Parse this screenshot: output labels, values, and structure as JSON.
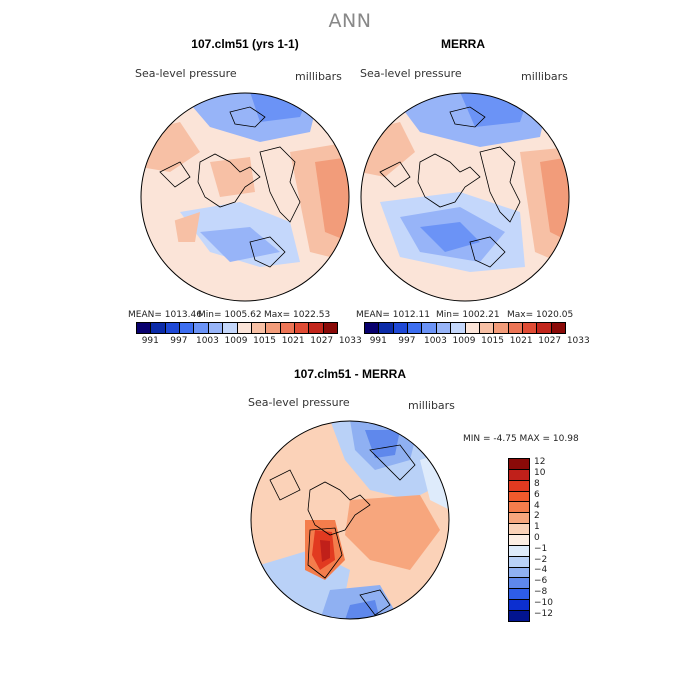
{
  "figure": {
    "title": "ANN"
  },
  "panels": [
    {
      "title": "107.clm51 (yrs 1-1)",
      "variable": "Sea-level pressure",
      "units": "millibars",
      "stats": {
        "mean_label": "MEAN= 1013.46",
        "min_label": "Min= 1005.62",
        "max_label": "Max= 1022.53"
      }
    },
    {
      "title": "MERRA",
      "variable": "Sea-level pressure",
      "units": "millibars",
      "stats": {
        "mean_label": "MEAN= 1012.11",
        "min_label": "Min= 1002.21",
        "max_label": "Max= 1020.05"
      }
    }
  ],
  "diff_panel": {
    "title": "107.clm51 - MERRA",
    "variable": "Sea-level pressure",
    "units": "millibars",
    "stats_label": "MIN =   -4.75 MAX =   10.98"
  },
  "colorbar_top": {
    "colors": [
      "#08006e",
      "#0b2ba8",
      "#1f49d6",
      "#3d6ef0",
      "#6b93f6",
      "#97b4f8",
      "#c4d7fb",
      "#fbe4d8",
      "#f7c0a5",
      "#f29c7a",
      "#ec7556",
      "#e04c35",
      "#c2261c",
      "#8a0a08"
    ],
    "ticks": [
      "991",
      "997",
      "1003",
      "1009",
      "1015",
      "1021",
      "1027",
      "1033"
    ]
  },
  "colorbar_diff": {
    "colors": [
      "#8a0a08",
      "#c0201a",
      "#e23a20",
      "#f05a2c",
      "#f47d4c",
      "#f7a67d",
      "#fbd2b8",
      "#fdeee4",
      "#deebfb",
      "#b9d1f7",
      "#8fb0f2",
      "#5f88ec",
      "#2e5de8",
      "#0c2fd0",
      "#02148f"
    ],
    "ticks": [
      "12",
      "10",
      "8",
      "6",
      "4",
      "2",
      "1",
      "0",
      "−1",
      "−2",
      "−4",
      "−6",
      "−8",
      "−10",
      "−12"
    ]
  },
  "chart_data": {
    "type": "heatmap",
    "title": "ANN",
    "projection": "north polar stereographic",
    "variable": "Sea-level pressure",
    "units": "millibars",
    "maps": [
      {
        "name": "107.clm51 (yrs 1-1)",
        "mean": 1013.46,
        "min": 1005.62,
        "max": 1022.53
      },
      {
        "name": "MERRA",
        "mean": 1012.11,
        "min": 1002.21,
        "max": 1020.05
      },
      {
        "name": "107.clm51 - MERRA",
        "min": -4.75,
        "max": 10.98
      }
    ],
    "contour_levels": [
      991,
      994,
      997,
      1000,
      1003,
      1006,
      1009,
      1012,
      1015,
      1018,
      1021,
      1024,
      1027,
      1030,
      1033
    ],
    "diff_levels": [
      -12,
      -10,
      -8,
      -6,
      -4,
      -2,
      -1,
      0,
      1,
      2,
      4,
      6,
      8,
      10,
      12
    ]
  }
}
